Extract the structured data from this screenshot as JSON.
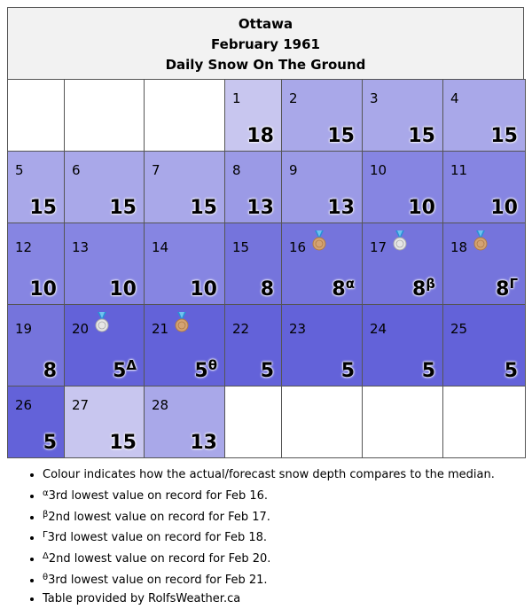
{
  "header": {
    "city": "Ottawa",
    "month": "February 1961",
    "subtitle": "Daily Snow On The Ground"
  },
  "colors": {
    "grid_border": "#555555",
    "header_bg": "#f2f2f2",
    "value_15_plus": "#c8c6ef",
    "value_15": "#a9a8e9",
    "value_13": "#9b9ae6",
    "value_10": "#8685e2",
    "value_8": "#7574dc",
    "value_5": "#6362d9"
  },
  "calendar": {
    "weeks": [
      [
        {
          "day": "",
          "value": "",
          "sup": "",
          "bg": "#ffffff",
          "medal": ""
        },
        {
          "day": "",
          "value": "",
          "sup": "",
          "bg": "#ffffff",
          "medal": ""
        },
        {
          "day": "",
          "value": "",
          "sup": "",
          "bg": "#ffffff",
          "medal": ""
        },
        {
          "day": "1",
          "value": "18",
          "sup": "",
          "bg": "#c8c6ef",
          "medal": ""
        },
        {
          "day": "2",
          "value": "15",
          "sup": "",
          "bg": "#a9a8e9",
          "medal": ""
        },
        {
          "day": "3",
          "value": "15",
          "sup": "",
          "bg": "#a9a8e9",
          "medal": ""
        },
        {
          "day": "4",
          "value": "15",
          "sup": "",
          "bg": "#a9a8e9",
          "medal": ""
        }
      ],
      [
        {
          "day": "5",
          "value": "15",
          "sup": "",
          "bg": "#a9a8e9",
          "medal": ""
        },
        {
          "day": "6",
          "value": "15",
          "sup": "",
          "bg": "#a9a8e9",
          "medal": ""
        },
        {
          "day": "7",
          "value": "15",
          "sup": "",
          "bg": "#a9a8e9",
          "medal": ""
        },
        {
          "day": "8",
          "value": "13",
          "sup": "",
          "bg": "#9b9ae6",
          "medal": ""
        },
        {
          "day": "9",
          "value": "13",
          "sup": "",
          "bg": "#9b9ae6",
          "medal": ""
        },
        {
          "day": "10",
          "value": "10",
          "sup": "",
          "bg": "#8685e2",
          "medal": ""
        },
        {
          "day": "11",
          "value": "10",
          "sup": "",
          "bg": "#8685e2",
          "medal": ""
        }
      ],
      [
        {
          "day": "12",
          "value": "10",
          "sup": "",
          "bg": "#8685e2",
          "medal": ""
        },
        {
          "day": "13",
          "value": "10",
          "sup": "",
          "bg": "#8685e2",
          "medal": ""
        },
        {
          "day": "14",
          "value": "10",
          "sup": "",
          "bg": "#8685e2",
          "medal": ""
        },
        {
          "day": "15",
          "value": "8",
          "sup": "",
          "bg": "#7574dc",
          "medal": ""
        },
        {
          "day": "16",
          "value": "8",
          "sup": "α",
          "bg": "#7574dc",
          "medal": "bronze"
        },
        {
          "day": "17",
          "value": "8",
          "sup": "β",
          "bg": "#7574dc",
          "medal": "silver"
        },
        {
          "day": "18",
          "value": "8",
          "sup": "Γ",
          "bg": "#7574dc",
          "medal": "bronze"
        }
      ],
      [
        {
          "day": "19",
          "value": "8",
          "sup": "",
          "bg": "#7574dc",
          "medal": ""
        },
        {
          "day": "20",
          "value": "5",
          "sup": "Δ",
          "bg": "#6362d9",
          "medal": "silver"
        },
        {
          "day": "21",
          "value": "5",
          "sup": "θ",
          "bg": "#6362d9",
          "medal": "bronze"
        },
        {
          "day": "22",
          "value": "5",
          "sup": "",
          "bg": "#6362d9",
          "medal": ""
        },
        {
          "day": "23",
          "value": "5",
          "sup": "",
          "bg": "#6362d9",
          "medal": ""
        },
        {
          "day": "24",
          "value": "5",
          "sup": "",
          "bg": "#6362d9",
          "medal": ""
        },
        {
          "day": "25",
          "value": "5",
          "sup": "",
          "bg": "#6362d9",
          "medal": ""
        }
      ],
      [
        {
          "day": "26",
          "value": "5",
          "sup": "",
          "bg": "#6362d9",
          "medal": ""
        },
        {
          "day": "27",
          "value": "15",
          "sup": "",
          "bg": "#c8c6ef",
          "medal": ""
        },
        {
          "day": "28",
          "value": "13",
          "sup": "",
          "bg": "#a9a8e9",
          "medal": ""
        },
        {
          "day": "",
          "value": "",
          "sup": "",
          "bg": "#ffffff",
          "medal": ""
        },
        {
          "day": "",
          "value": "",
          "sup": "",
          "bg": "#ffffff",
          "medal": ""
        },
        {
          "day": "",
          "value": "",
          "sup": "",
          "bg": "#ffffff",
          "medal": ""
        },
        {
          "day": "",
          "value": "",
          "sup": "",
          "bg": "#ffffff",
          "medal": ""
        }
      ]
    ]
  },
  "notes": [
    {
      "sup": "",
      "text": "Colour indicates how the actual/forecast snow depth compares to the median."
    },
    {
      "sup": "α",
      "text": "3rd lowest value on record for Feb 16."
    },
    {
      "sup": "β",
      "text": "2nd lowest value on record for Feb 17."
    },
    {
      "sup": "Γ",
      "text": "3rd lowest value on record for Feb 18."
    },
    {
      "sup": "Δ",
      "text": "2nd lowest value on record for Feb 20."
    },
    {
      "sup": "θ",
      "text": "3rd lowest value on record for Feb 21."
    },
    {
      "sup": "",
      "text": "Table provided by RolfsWeather.ca"
    }
  ]
}
